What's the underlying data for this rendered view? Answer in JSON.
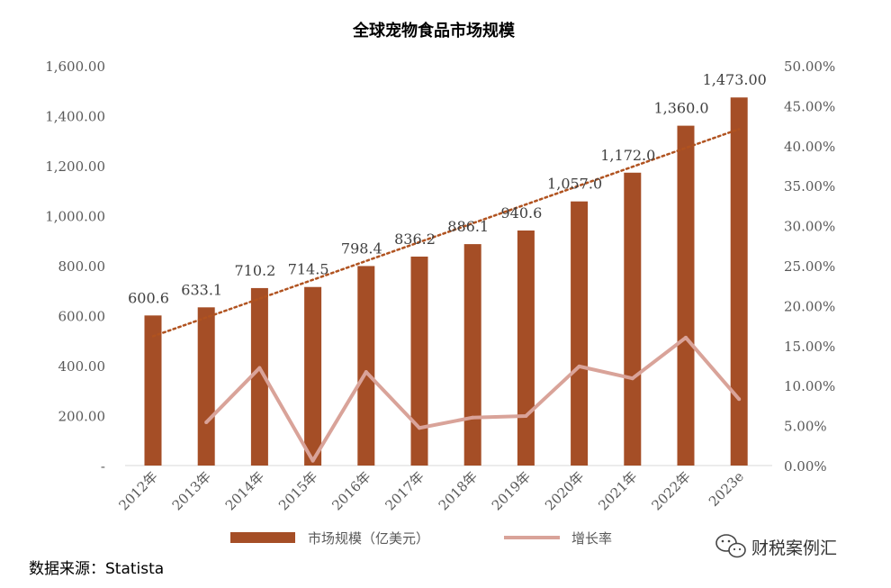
{
  "chart_data": {
    "type": "bar",
    "title": "全球宠物食品市场规模",
    "categories": [
      "2012年",
      "2013年",
      "2014年",
      "2015年",
      "2016年",
      "2017年",
      "2018年",
      "2019年",
      "2020年",
      "2021年",
      "2022年",
      "2023e"
    ],
    "series": [
      {
        "name": "市场规模（亿美元）",
        "type": "bar",
        "axis": "left",
        "color": "#A54E26",
        "values": [
          600.6,
          633.1,
          710.2,
          714.5,
          798.4,
          836.2,
          886.1,
          940.6,
          1057.0,
          1172.0,
          1360.0,
          1473.0
        ],
        "labels": [
          "600.6",
          "633.1",
          "710.2",
          "714.5",
          "798.4",
          "836.2",
          "886.1",
          "940.6",
          "1,057.0",
          "1,172.0",
          "1,360.0",
          "1,473.00"
        ]
      },
      {
        "name": "增长率",
        "type": "line",
        "axis": "right",
        "color": "#D9A399",
        "values": [
          null,
          5.4,
          12.2,
          0.6,
          11.7,
          4.7,
          6.0,
          6.2,
          12.4,
          10.9,
          16.0,
          8.3
        ]
      }
    ],
    "trendline": {
      "of": "市场规模（亿美元）",
      "style": "dotted",
      "color": "#B0521F"
    },
    "y_left": {
      "range": [
        0,
        1600
      ],
      "ticks": [
        0,
        200,
        400,
        600,
        800,
        1000,
        1200,
        1400,
        1600
      ],
      "tick_labels": [
        "-",
        "200.00",
        "400.00",
        "600.00",
        "800.00",
        "1,000.00",
        "1,200.00",
        "1,400.00",
        "1,600.00"
      ]
    },
    "y_right": {
      "range": [
        0,
        50
      ],
      "ticks": [
        0,
        5,
        10,
        15,
        20,
        25,
        30,
        35,
        40,
        45,
        50
      ],
      "tick_labels": [
        "0.00%",
        "5.00%",
        "10.00%",
        "15.00%",
        "20.00%",
        "25.00%",
        "30.00%",
        "35.00%",
        "40.00%",
        "45.00%",
        "50.00%"
      ]
    },
    "legend": {
      "position": "bottom",
      "items": [
        "市场规模（亿美元）",
        "增长率"
      ]
    },
    "grid": false
  },
  "source": "数据来源：Statista",
  "watermark": "财税案例汇",
  "watermark_icon": "wechat-icon"
}
